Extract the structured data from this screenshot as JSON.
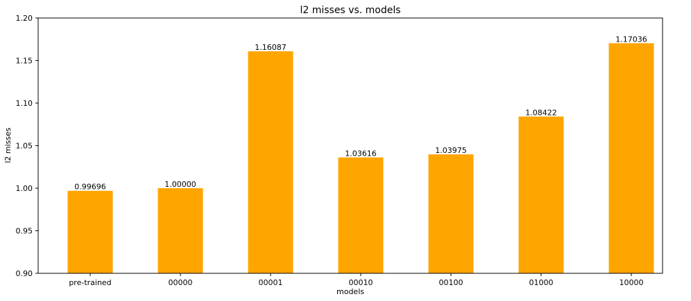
{
  "chart_data": {
    "type": "bar",
    "title": "l2 misses vs. models",
    "xlabel": "models",
    "ylabel": "l2 misses",
    "categories": [
      "pre-trained",
      "00000",
      "00001",
      "00010",
      "00100",
      "01000",
      "10000"
    ],
    "values": [
      0.99696,
      1.0,
      1.16087,
      1.03616,
      1.03975,
      1.08422,
      1.17036
    ],
    "data_labels": [
      "0.99696",
      "1.00000",
      "1.16087",
      "1.03616",
      "1.03975",
      "1.08422",
      "1.17036"
    ],
    "ylim": [
      0.9,
      1.2
    ],
    "yticks": [
      "0.90",
      "0.95",
      "1.00",
      "1.05",
      "1.10",
      "1.15",
      "1.20"
    ],
    "bar_color": "#FFA500",
    "grid": false,
    "legend": "none"
  }
}
